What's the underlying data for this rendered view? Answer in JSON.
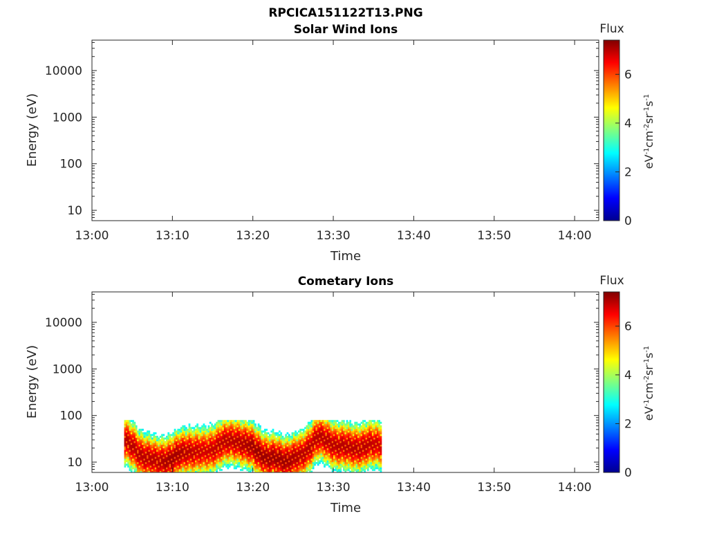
{
  "page_title": "RPCICA151122T13.PNG",
  "colors": {
    "axis": "#262626",
    "colormap": [
      "#00008f",
      "#0000ff",
      "#0080ff",
      "#00ffff",
      "#80ff80",
      "#ffff00",
      "#ff8000",
      "#ff0000",
      "#800000"
    ]
  },
  "chart_data": [
    {
      "type": "heatmap",
      "title": "Solar Wind Ions",
      "xlabel": "Time",
      "ylabel": "Energy (eV)",
      "x_ticks": [
        "13:00",
        "13:10",
        "13:20",
        "13:30",
        "13:40",
        "13:50",
        "14:00"
      ],
      "xlim": [
        "13:00",
        "14:03"
      ],
      "y_scale": "log",
      "y_ticks": [
        "10",
        "100",
        "1000",
        "10000"
      ],
      "ylim": [
        6,
        45000
      ],
      "colorbar": {
        "title": "Flux",
        "unit_text": "eV-1cm-2sr-1s-1",
        "ticks": [
          "0",
          "2",
          "4",
          "6"
        ],
        "range": [
          0,
          7.4
        ],
        "colormap": "jet"
      },
      "data": []
    },
    {
      "type": "heatmap",
      "title": "Cometary Ions",
      "xlabel": "Time",
      "ylabel": "Energy (eV)",
      "x_ticks": [
        "13:00",
        "13:10",
        "13:20",
        "13:30",
        "13:40",
        "13:50",
        "14:00"
      ],
      "xlim": [
        "13:00",
        "14:03"
      ],
      "y_scale": "log",
      "y_ticks": [
        "10",
        "100",
        "1000",
        "10000"
      ],
      "ylim": [
        6,
        45000
      ],
      "colorbar": {
        "title": "Flux",
        "unit_text": "eV-1cm-2sr-1s-1",
        "ticks": [
          "0",
          "2",
          "4",
          "6"
        ],
        "range": [
          0,
          7.4
        ],
        "colormap": "jet"
      },
      "data_time_range": [
        "13:04",
        "13:36"
      ],
      "data_energy_range": [
        6,
        80
      ],
      "peak_energy_profile": [
        {
          "time": "13:04",
          "energy": 30,
          "peak_flux": 7.0
        },
        {
          "time": "13:06",
          "energy": 15,
          "peak_flux": 7.0
        },
        {
          "time": "13:08",
          "energy": 10,
          "peak_flux": 7.0
        },
        {
          "time": "13:10",
          "energy": 12,
          "peak_flux": 7.2
        },
        {
          "time": "13:12",
          "energy": 18,
          "peak_flux": 7.0
        },
        {
          "time": "13:14",
          "energy": 16,
          "peak_flux": 6.8
        },
        {
          "time": "13:16",
          "energy": 25,
          "peak_flux": 7.0
        },
        {
          "time": "13:18",
          "energy": 30,
          "peak_flux": 7.0
        },
        {
          "time": "13:20",
          "energy": 20,
          "peak_flux": 7.2
        },
        {
          "time": "13:22",
          "energy": 12,
          "peak_flux": 7.2
        },
        {
          "time": "13:24",
          "energy": 11,
          "peak_flux": 7.2
        },
        {
          "time": "13:26",
          "energy": 13,
          "peak_flux": 7.0
        },
        {
          "time": "13:28",
          "energy": 35,
          "peak_flux": 7.0
        },
        {
          "time": "13:30",
          "energy": 25,
          "peak_flux": 7.0
        },
        {
          "time": "13:32",
          "energy": 20,
          "peak_flux": 7.0
        },
        {
          "time": "13:34",
          "energy": 22,
          "peak_flux": 7.0
        },
        {
          "time": "13:36",
          "energy": 25,
          "peak_flux": 6.8
        }
      ]
    }
  ]
}
